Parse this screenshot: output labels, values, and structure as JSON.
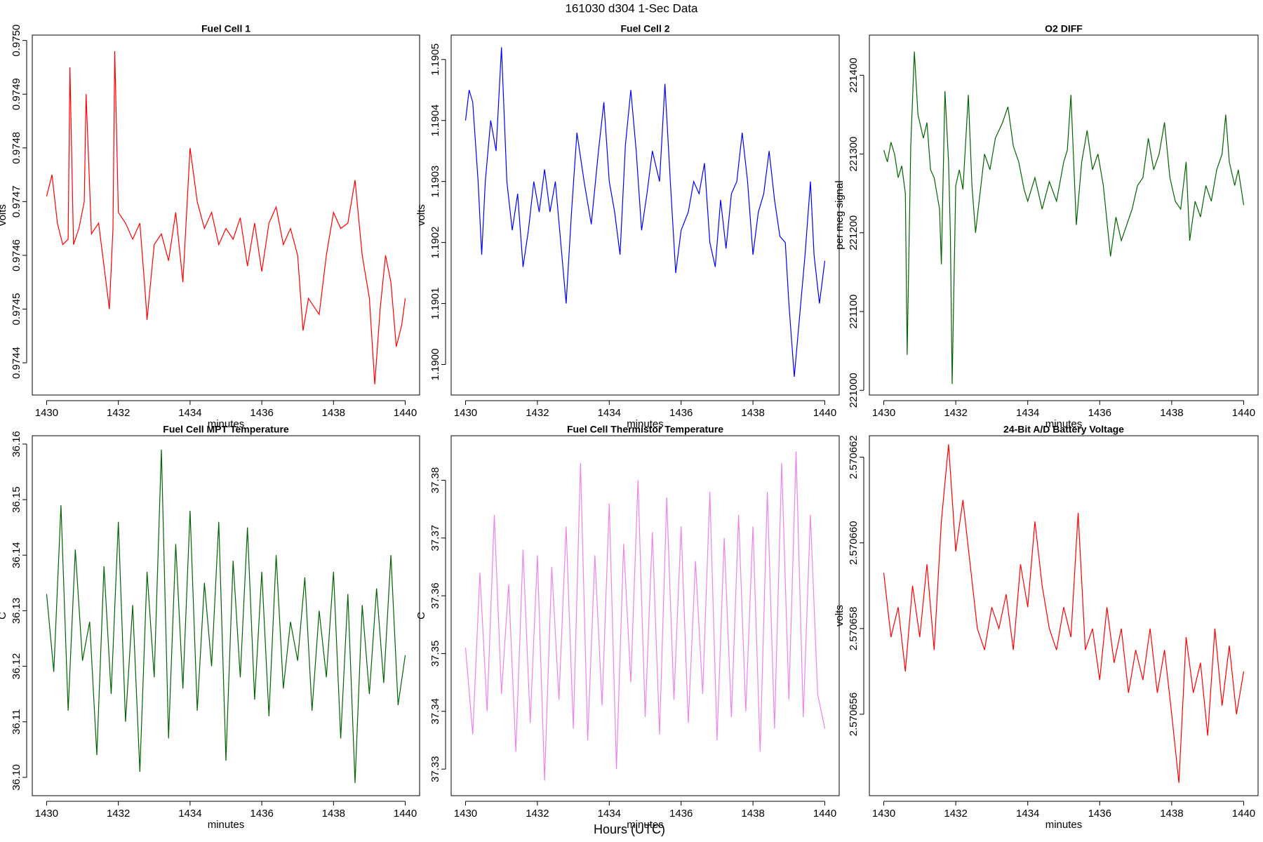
{
  "title": "161030   d304   1-Sec Data",
  "xlabel": "Hours (UTC)",
  "chart_data": [
    {
      "type": "line",
      "title": "Fuel Cell 1",
      "xlabel": "minutes",
      "ylabel": "volts",
      "xlim": [
        1429.6,
        1440.4
      ],
      "xticks": [
        1430,
        1432,
        1434,
        1436,
        1438,
        1440
      ],
      "ylim": [
        0.97434,
        0.97501
      ],
      "yticks": [
        0.9744,
        0.9745,
        0.9746,
        0.9747,
        0.9748,
        0.9749,
        {
          "value": 0.975,
          "label": "0.9750"
        }
      ],
      "series": [
        {
          "color": "#ff0000",
          "x": [
            1430.0,
            1430.15,
            1430.3,
            1430.45,
            1430.6,
            1430.65,
            1430.75,
            1430.9,
            1431.05,
            1431.1,
            1431.25,
            1431.45,
            1431.6,
            1431.75,
            1431.85,
            1431.9,
            1432.0,
            1432.2,
            1432.4,
            1432.6,
            1432.75,
            1432.8,
            1433.0,
            1433.2,
            1433.4,
            1433.6,
            1433.8,
            1434.0,
            1434.2,
            1434.4,
            1434.6,
            1434.8,
            1435.0,
            1435.2,
            1435.4,
            1435.6,
            1435.8,
            1436.0,
            1436.2,
            1436.4,
            1436.6,
            1436.8,
            1437.0,
            1437.15,
            1437.3,
            1437.6,
            1437.8,
            1438.0,
            1438.2,
            1438.4,
            1438.6,
            1438.8,
            1439.0,
            1439.15,
            1439.3,
            1439.45,
            1439.6,
            1439.75,
            1439.9,
            1440.0
          ],
          "values": [
            0.97471,
            0.97475,
            0.97466,
            0.97462,
            0.97463,
            0.97495,
            0.97462,
            0.97465,
            0.9747,
            0.9749,
            0.97464,
            0.97466,
            0.97458,
            0.9745,
            0.97465,
            0.97498,
            0.97468,
            0.97466,
            0.97463,
            0.97466,
            0.97453,
            0.97448,
            0.97462,
            0.97464,
            0.97459,
            0.97468,
            0.97455,
            0.9748,
            0.9747,
            0.97465,
            0.97468,
            0.97462,
            0.97465,
            0.97463,
            0.97467,
            0.97458,
            0.97466,
            0.97457,
            0.97466,
            0.97469,
            0.97462,
            0.97465,
            0.9746,
            0.97446,
            0.97452,
            0.97449,
            0.9746,
            0.97468,
            0.97465,
            0.97466,
            0.97474,
            0.9746,
            0.97452,
            0.97436,
            0.9745,
            0.9746,
            0.97455,
            0.97443,
            0.97447,
            0.97452
          ]
        }
      ]
    },
    {
      "type": "line",
      "title": "Fuel Cell 2",
      "xlabel": "minutes",
      "ylabel": "volts",
      "xlim": [
        1429.6,
        1440.4
      ],
      "xticks": [
        1430,
        1432,
        1434,
        1436,
        1438,
        1440
      ],
      "ylim": [
        1.18995,
        1.19054
      ],
      "yticks": [
        {
          "value": 1.19,
          "label": "1.1900"
        },
        1.1901,
        1.1902,
        1.1903,
        1.1904,
        1.1905
      ],
      "series": [
        {
          "color": "#0000ff",
          "x": [
            1430.0,
            1430.1,
            1430.2,
            1430.35,
            1430.45,
            1430.55,
            1430.7,
            1430.85,
            1431.0,
            1431.15,
            1431.3,
            1431.45,
            1431.6,
            1431.75,
            1431.9,
            1432.05,
            1432.2,
            1432.35,
            1432.5,
            1432.65,
            1432.8,
            1432.95,
            1433.1,
            1433.3,
            1433.5,
            1433.7,
            1433.85,
            1434.0,
            1434.15,
            1434.3,
            1434.45,
            1434.6,
            1434.75,
            1434.9,
            1435.05,
            1435.2,
            1435.4,
            1435.55,
            1435.7,
            1435.85,
            1436.0,
            1436.2,
            1436.35,
            1436.5,
            1436.65,
            1436.8,
            1436.95,
            1437.1,
            1437.25,
            1437.4,
            1437.55,
            1437.7,
            1437.85,
            1438.0,
            1438.15,
            1438.3,
            1438.45,
            1438.6,
            1438.75,
            1438.9,
            1439.0,
            1439.15,
            1439.3,
            1439.45,
            1439.6,
            1439.7,
            1439.85,
            1440.0
          ],
          "values": [
            1.1904,
            1.19045,
            1.19043,
            1.1903,
            1.19018,
            1.1903,
            1.1904,
            1.19035,
            1.19052,
            1.1903,
            1.19022,
            1.19028,
            1.19016,
            1.19022,
            1.1903,
            1.19025,
            1.19032,
            1.19025,
            1.1903,
            1.1902,
            1.1901,
            1.19025,
            1.19038,
            1.1903,
            1.19023,
            1.19035,
            1.19043,
            1.1903,
            1.19025,
            1.19018,
            1.19036,
            1.19045,
            1.19035,
            1.19022,
            1.19028,
            1.19035,
            1.1903,
            1.19046,
            1.1903,
            1.19015,
            1.19022,
            1.19025,
            1.1903,
            1.19028,
            1.19033,
            1.1902,
            1.19016,
            1.19027,
            1.19019,
            1.19028,
            1.1903,
            1.19038,
            1.1903,
            1.19018,
            1.19025,
            1.19028,
            1.19035,
            1.19027,
            1.19021,
            1.1902,
            1.1901,
            1.18998,
            1.19008,
            1.19018,
            1.1903,
            1.19018,
            1.1901,
            1.19017
          ]
        }
      ]
    },
    {
      "type": "line",
      "title": "O2 DIFF",
      "xlabel": "minutes",
      "ylabel": "per meg signal",
      "xlim": [
        1429.6,
        1440.4
      ],
      "xticks": [
        1430,
        1432,
        1434,
        1436,
        1438,
        1440
      ],
      "ylim": [
        220994,
        221451
      ],
      "yticks": [
        221000,
        221100,
        221200,
        221300,
        221400
      ],
      "series": [
        {
          "color": "#006400",
          "x": [
            1430.0,
            1430.1,
            1430.2,
            1430.3,
            1430.4,
            1430.5,
            1430.6,
            1430.65,
            1430.75,
            1430.85,
            1430.95,
            1431.1,
            1431.2,
            1431.3,
            1431.4,
            1431.55,
            1431.6,
            1431.7,
            1431.8,
            1431.85,
            1431.9,
            1432.0,
            1432.1,
            1432.2,
            1432.35,
            1432.45,
            1432.55,
            1432.65,
            1432.8,
            1432.95,
            1433.1,
            1433.3,
            1433.45,
            1433.6,
            1433.75,
            1433.9,
            1434.0,
            1434.2,
            1434.4,
            1434.6,
            1434.8,
            1435.0,
            1435.1,
            1435.2,
            1435.35,
            1435.5,
            1435.65,
            1435.8,
            1435.95,
            1436.1,
            1436.3,
            1436.45,
            1436.6,
            1436.75,
            1436.9,
            1437.05,
            1437.2,
            1437.35,
            1437.5,
            1437.65,
            1437.8,
            1437.95,
            1438.1,
            1438.25,
            1438.4,
            1438.5,
            1438.65,
            1438.8,
            1438.95,
            1439.1,
            1439.25,
            1439.4,
            1439.5,
            1439.6,
            1439.75,
            1439.85,
            1440.0
          ],
          "values": [
            221305,
            221290,
            221315,
            221300,
            221270,
            221285,
            221250,
            221045,
            221310,
            221430,
            221350,
            221320,
            221340,
            221280,
            221270,
            221230,
            221160,
            221380,
            221290,
            221200,
            221008,
            221260,
            221280,
            221255,
            221375,
            221260,
            221200,
            221240,
            221300,
            221280,
            221320,
            221340,
            221360,
            221310,
            221290,
            221255,
            221240,
            221270,
            221230,
            221265,
            221240,
            221290,
            221305,
            221375,
            221210,
            221290,
            221330,
            221280,
            221300,
            221260,
            221170,
            221220,
            221190,
            221210,
            221230,
            221260,
            221270,
            221320,
            221280,
            221300,
            221340,
            221270,
            221240,
            221230,
            221290,
            221190,
            221240,
            221220,
            221260,
            221240,
            221280,
            221300,
            221350,
            221290,
            221260,
            221280,
            221235
          ]
        }
      ]
    },
    {
      "type": "line",
      "title": "Fuel Cell MPT Temperature",
      "xlabel": "minutes",
      "ylabel": "C",
      "xlim": [
        1429.6,
        1440.4
      ],
      "xticks": [
        1430,
        1432,
        1434,
        1436,
        1438,
        1440
      ],
      "ylim": [
        36.0967,
        36.1615
      ],
      "yticks": [
        {
          "value": 36.1,
          "label": "36.10"
        },
        36.11,
        36.12,
        36.13,
        36.14,
        36.15,
        36.16
      ],
      "series": [
        {
          "color": "#006400",
          "x": [
            1430.0,
            1430.2,
            1430.4,
            1430.6,
            1430.8,
            1431.0,
            1431.2,
            1431.4,
            1431.6,
            1431.8,
            1432.0,
            1432.2,
            1432.4,
            1432.6,
            1432.8,
            1433.0,
            1433.2,
            1433.4,
            1433.6,
            1433.8,
            1434.0,
            1434.2,
            1434.4,
            1434.6,
            1434.8,
            1435.0,
            1435.2,
            1435.4,
            1435.6,
            1435.8,
            1436.0,
            1436.2,
            1436.4,
            1436.6,
            1436.8,
            1437.0,
            1437.2,
            1437.4,
            1437.6,
            1437.8,
            1438.0,
            1438.2,
            1438.4,
            1438.6,
            1438.8,
            1439.0,
            1439.2,
            1439.4,
            1439.6,
            1439.8,
            1440.0
          ],
          "values": [
            36.133,
            36.119,
            36.149,
            36.112,
            36.141,
            36.121,
            36.128,
            36.104,
            36.138,
            36.115,
            36.146,
            36.11,
            36.131,
            36.101,
            36.137,
            36.118,
            36.159,
            36.107,
            36.142,
            36.116,
            36.148,
            36.112,
            36.135,
            36.12,
            36.146,
            36.103,
            36.139,
            36.118,
            36.145,
            36.114,
            36.137,
            36.111,
            36.14,
            36.116,
            36.128,
            36.121,
            36.136,
            36.112,
            36.13,
            36.118,
            36.137,
            36.107,
            36.133,
            36.099,
            36.131,
            36.115,
            36.134,
            36.117,
            36.14,
            36.113,
            36.122
          ]
        }
      ]
    },
    {
      "type": "line",
      "title": "Fuel Cell Thermistor Temperature",
      "xlabel": "minutes",
      "ylabel": "C",
      "xlim": [
        1429.6,
        1440.4
      ],
      "xticks": [
        1430,
        1432,
        1434,
        1436,
        1438,
        1440
      ],
      "ylim": [
        37.3254,
        37.3877
      ],
      "yticks": [
        37.33,
        37.34,
        37.35,
        37.36,
        37.37,
        37.38
      ],
      "series": [
        {
          "color": "#ee82ee",
          "x": [
            1430.0,
            1430.2,
            1430.4,
            1430.6,
            1430.8,
            1431.0,
            1431.2,
            1431.4,
            1431.6,
            1431.8,
            1432.0,
            1432.2,
            1432.4,
            1432.6,
            1432.8,
            1433.0,
            1433.2,
            1433.4,
            1433.6,
            1433.8,
            1434.0,
            1434.2,
            1434.4,
            1434.6,
            1434.8,
            1435.0,
            1435.2,
            1435.4,
            1435.6,
            1435.8,
            1436.0,
            1436.2,
            1436.4,
            1436.6,
            1436.8,
            1437.0,
            1437.2,
            1437.4,
            1437.6,
            1437.8,
            1438.0,
            1438.2,
            1438.4,
            1438.6,
            1438.8,
            1439.0,
            1439.2,
            1439.4,
            1439.6,
            1439.8,
            1440.0
          ],
          "values": [
            37.351,
            37.336,
            37.364,
            37.34,
            37.374,
            37.343,
            37.362,
            37.333,
            37.368,
            37.338,
            37.367,
            37.328,
            37.365,
            37.342,
            37.372,
            37.337,
            37.383,
            37.335,
            37.367,
            37.341,
            37.376,
            37.33,
            37.369,
            37.345,
            37.38,
            37.339,
            37.371,
            37.336,
            37.377,
            37.342,
            37.372,
            37.338,
            37.366,
            37.343,
            37.378,
            37.335,
            37.37,
            37.339,
            37.374,
            37.34,
            37.372,
            37.333,
            37.378,
            37.337,
            37.383,
            37.342,
            37.385,
            37.339,
            37.374,
            37.343,
            37.337
          ]
        }
      ]
    },
    {
      "type": "line",
      "title": "24-Bit A/D Battery Voltage",
      "xlabel": "minutes",
      "ylabel": "volts",
      "xlim": [
        1429.6,
        1440.4
      ],
      "xticks": [
        1430,
        1432,
        1434,
        1436,
        1438,
        1440
      ],
      "ylim": [
        2.5706541,
        2.5706625
      ],
      "yticks": [
        2.570656,
        2.570658,
        {
          "value": 2.57066,
          "label": "2.570660"
        },
        2.570662
      ],
      "series": [
        {
          "color": "#ff0000",
          "x": [
            1430.0,
            1430.2,
            1430.4,
            1430.6,
            1430.8,
            1431.0,
            1431.2,
            1431.4,
            1431.6,
            1431.8,
            1432.0,
            1432.2,
            1432.4,
            1432.6,
            1432.8,
            1433.0,
            1433.2,
            1433.4,
            1433.6,
            1433.8,
            1434.0,
            1434.2,
            1434.4,
            1434.6,
            1434.8,
            1435.0,
            1435.2,
            1435.4,
            1435.6,
            1435.8,
            1436.0,
            1436.2,
            1436.4,
            1436.6,
            1436.8,
            1437.0,
            1437.2,
            1437.4,
            1437.6,
            1437.8,
            1438.0,
            1438.2,
            1438.4,
            1438.6,
            1438.8,
            1439.0,
            1439.2,
            1439.4,
            1439.6,
            1439.8,
            1440.0
          ],
          "values": [
            2.5706593,
            2.5706578,
            2.5706585,
            2.570657,
            2.570659,
            2.5706578,
            2.5706595,
            2.5706575,
            2.5706605,
            2.5706623,
            2.5706598,
            2.570661,
            2.5706595,
            2.570658,
            2.5706575,
            2.5706585,
            2.570658,
            2.5706588,
            2.5706575,
            2.5706595,
            2.5706585,
            2.5706605,
            2.570659,
            2.570658,
            2.5706575,
            2.5706585,
            2.5706578,
            2.5706607,
            2.5706575,
            2.570658,
            2.5706568,
            2.5706585,
            2.5706572,
            2.570658,
            2.5706565,
            2.5706575,
            2.5706568,
            2.570658,
            2.5706565,
            2.5706575,
            2.570656,
            2.5706544,
            2.5706578,
            2.5706565,
            2.5706572,
            2.5706555,
            2.570658,
            2.5706562,
            2.5706576,
            2.570656,
            2.570657
          ]
        }
      ]
    }
  ]
}
